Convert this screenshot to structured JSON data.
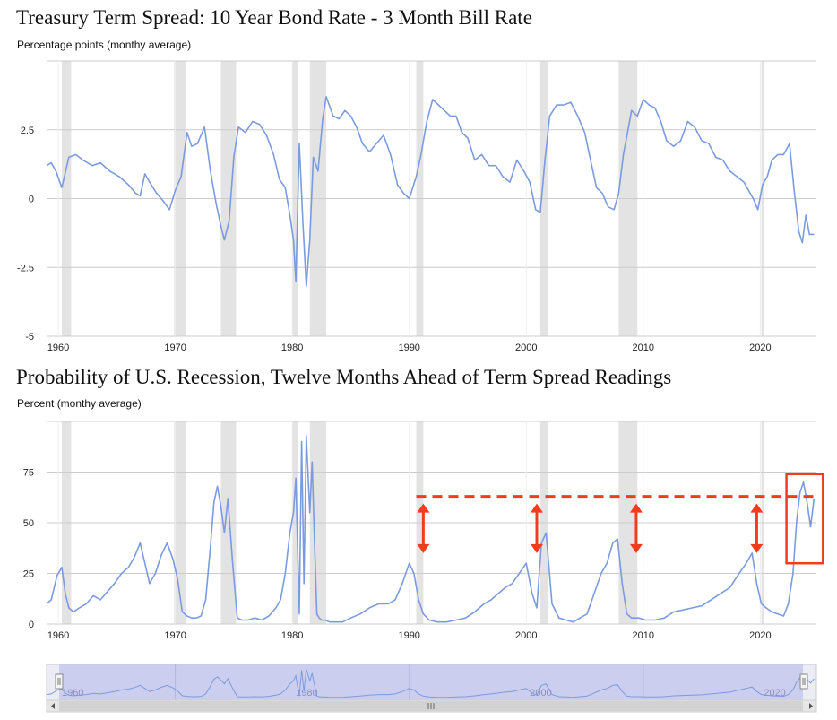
{
  "colors": {
    "line": "#7b9be0",
    "recession_band": "#e3e3e3",
    "grid": "#cccccc",
    "annotation": "#f23c1c",
    "navigator_fill": "#c6c9ec",
    "navigator_bg": "#ececf4"
  },
  "charts": {
    "spread": {
      "title": "Treasury Term Spread: 10 Year Bond Rate - 3 Month Bill Rate",
      "subtitle": "Percentage points (monthy average)"
    },
    "probability": {
      "title": "Probability of U.S. Recession, Twelve Months Ahead of Term Spread Readings",
      "subtitle": "Percent (monthy average)"
    }
  },
  "navigator": {
    "labels": [
      "1960",
      "1980",
      "2000",
      "2020"
    ],
    "left_handle_icon": "handle-grip-icon",
    "right_handle_icon": "handle-grip-icon",
    "scroll_left_icon": "arrow-left-icon",
    "scroll_right_icon": "arrow-right-icon",
    "scroll_thumb_icon": "scroll-grip-icon"
  },
  "chart_data": [
    {
      "type": "line",
      "x_ticks": [
        "1960",
        "1970",
        "1980",
        "1990",
        "2000",
        "2010",
        "2020"
      ],
      "y_ticks": [
        "2.5",
        "0",
        "-2.5",
        "-5"
      ],
      "xlim": [
        1959.0,
        2024.8
      ],
      "ylim": [
        -5,
        5
      ],
      "recessions": [
        [
          1960.3,
          1961.1
        ],
        [
          1969.9,
          1970.9
        ],
        [
          1973.9,
          1975.2
        ],
        [
          1980.0,
          1980.5
        ],
        [
          1981.5,
          1982.9
        ],
        [
          1990.6,
          1991.2
        ],
        [
          2001.2,
          2001.9
        ],
        [
          2007.9,
          2009.5
        ],
        [
          2020.1,
          2020.3
        ]
      ],
      "series": [
        {
          "x": [
            1959.0,
            1959.4,
            1959.8,
            1960.3,
            1960.9,
            1961.5,
            1962.1,
            1962.9,
            1963.6,
            1964.4,
            1965.2,
            1966.0,
            1966.6,
            1967.0,
            1967.4,
            1967.8,
            1968.4,
            1969.0,
            1969.5,
            1970.0,
            1970.5,
            1971.0,
            1971.4,
            1971.9,
            1972.5,
            1973.0,
            1973.5,
            1973.9,
            1974.2,
            1974.6,
            1975.0,
            1975.4,
            1976.0,
            1976.6,
            1977.2,
            1977.8,
            1978.4,
            1978.9,
            1979.4,
            1979.8,
            1980.1,
            1980.3,
            1980.6,
            1980.9,
            1981.2,
            1981.5,
            1981.8,
            1982.2,
            1982.6,
            1982.9,
            1983.5,
            1984.0,
            1984.5,
            1985.0,
            1985.5,
            1986.0,
            1986.6,
            1987.2,
            1987.8,
            1988.4,
            1989.0,
            1989.5,
            1990.0,
            1990.6,
            1991.0,
            1991.5,
            1992.0,
            1992.5,
            1993.0,
            1993.5,
            1994.0,
            1994.5,
            1995.0,
            1995.6,
            1996.2,
            1996.8,
            1997.4,
            1998.0,
            1998.6,
            1999.2,
            1999.8,
            2000.3,
            2000.8,
            2001.2,
            2001.6,
            2002.0,
            2002.6,
            2003.2,
            2003.8,
            2004.4,
            2005.0,
            2005.6,
            2006.0,
            2006.5,
            2007.0,
            2007.5,
            2007.9,
            2008.3,
            2008.7,
            2009.0,
            2009.5,
            2010.0,
            2010.5,
            2011.0,
            2011.5,
            2012.0,
            2012.6,
            2013.2,
            2013.8,
            2014.4,
            2015.0,
            2015.6,
            2016.2,
            2016.8,
            2017.4,
            2018.0,
            2018.6,
            2019.0,
            2019.4,
            2019.8,
            2020.2,
            2020.6,
            2021.0,
            2021.5,
            2022.0,
            2022.5,
            2022.9,
            2023.3,
            2023.6,
            2023.9,
            2024.2,
            2024.6
          ],
          "y": [
            1.2,
            1.3,
            1.0,
            0.4,
            1.5,
            1.6,
            1.4,
            1.2,
            1.3,
            1.0,
            0.8,
            0.5,
            0.2,
            0.1,
            0.9,
            0.6,
            0.2,
            -0.1,
            -0.4,
            0.3,
            0.8,
            2.4,
            1.9,
            2.0,
            2.6,
            1.0,
            -0.2,
            -1.0,
            -1.5,
            -0.8,
            1.5,
            2.6,
            2.4,
            2.8,
            2.7,
            2.3,
            1.6,
            0.7,
            0.4,
            -0.6,
            -1.5,
            -3.0,
            2.0,
            -0.8,
            -3.2,
            -1.5,
            1.5,
            1.0,
            2.9,
            3.7,
            3.0,
            2.9,
            3.2,
            3.0,
            2.6,
            2.0,
            1.7,
            2.0,
            2.3,
            1.6,
            0.5,
            0.2,
            0.0,
            0.8,
            1.6,
            2.8,
            3.6,
            3.4,
            3.2,
            3.0,
            3.0,
            2.4,
            2.2,
            1.4,
            1.6,
            1.2,
            1.2,
            0.8,
            0.6,
            1.4,
            1.0,
            0.6,
            -0.4,
            -0.5,
            1.4,
            3.0,
            3.4,
            3.4,
            3.5,
            3.0,
            2.4,
            1.2,
            0.4,
            0.2,
            -0.3,
            -0.4,
            0.2,
            1.6,
            2.5,
            3.2,
            3.0,
            3.6,
            3.4,
            3.3,
            2.8,
            2.1,
            1.9,
            2.1,
            2.8,
            2.6,
            2.1,
            2.0,
            1.5,
            1.4,
            1.0,
            0.8,
            0.6,
            0.3,
            0.0,
            -0.4,
            0.5,
            0.8,
            1.4,
            1.6,
            1.6,
            2.0,
            0.3,
            -1.2,
            -1.6,
            -0.6,
            -1.3,
            -1.3
          ]
        }
      ]
    },
    {
      "type": "line",
      "x_ticks": [
        "1960",
        "1970",
        "1980",
        "1990",
        "2000",
        "2010",
        "2020"
      ],
      "y_ticks": [
        "75",
        "50",
        "25",
        "0"
      ],
      "xlim": [
        1959.0,
        2024.8
      ],
      "ylim": [
        0,
        100
      ],
      "recessions": [
        [
          1960.3,
          1961.1
        ],
        [
          1969.9,
          1970.9
        ],
        [
          1973.9,
          1975.2
        ],
        [
          1980.0,
          1980.5
        ],
        [
          1981.5,
          1982.9
        ],
        [
          1990.6,
          1991.2
        ],
        [
          2001.2,
          2001.9
        ],
        [
          2007.9,
          2009.5
        ],
        [
          2020.1,
          2020.3
        ]
      ],
      "series": [
        {
          "x": [
            1959.0,
            1959.4,
            1959.9,
            1960.3,
            1960.6,
            1960.9,
            1961.3,
            1961.8,
            1962.4,
            1963.0,
            1963.6,
            1964.2,
            1964.8,
            1965.4,
            1966.0,
            1966.5,
            1967.0,
            1967.4,
            1967.8,
            1968.3,
            1968.8,
            1969.3,
            1969.8,
            1970.2,
            1970.6,
            1971.0,
            1971.4,
            1971.8,
            1972.2,
            1972.6,
            1973.0,
            1973.3,
            1973.6,
            1973.9,
            1974.2,
            1974.5,
            1974.9,
            1975.3,
            1975.7,
            1976.2,
            1976.8,
            1977.4,
            1978.0,
            1978.6,
            1979.0,
            1979.4,
            1979.8,
            1980.1,
            1980.3,
            1980.6,
            1980.8,
            1981.0,
            1981.2,
            1981.5,
            1981.7,
            1981.9,
            1982.1,
            1982.3,
            1982.5,
            1982.8,
            1983.2,
            1983.7,
            1984.3,
            1985.0,
            1985.8,
            1986.6,
            1987.4,
            1988.2,
            1988.8,
            1989.4,
            1990.0,
            1990.4,
            1990.8,
            1991.2,
            1991.7,
            1992.4,
            1993.2,
            1994.0,
            1994.8,
            1995.6,
            1996.4,
            1997.0,
            1997.6,
            1998.2,
            1998.8,
            1999.4,
            2000.0,
            2000.5,
            2000.9,
            2001.3,
            2001.7,
            2002.2,
            2002.8,
            2003.4,
            2004.0,
            2004.6,
            2005.2,
            2005.8,
            2006.4,
            2006.9,
            2007.4,
            2007.8,
            2008.2,
            2008.6,
            2009.0,
            2009.6,
            2010.2,
            2011.0,
            2011.8,
            2012.6,
            2013.4,
            2014.2,
            2015.0,
            2015.8,
            2016.6,
            2017.4,
            2018.2,
            2018.8,
            2019.3,
            2019.7,
            2020.1,
            2020.5,
            2021.0,
            2021.5,
            2022.0,
            2022.4,
            2022.8,
            2023.1,
            2023.4,
            2023.7,
            2024.0,
            2024.3,
            2024.6
          ],
          "y": [
            10,
            12,
            24,
            28,
            15,
            8,
            6,
            8,
            10,
            14,
            12,
            16,
            20,
            25,
            28,
            33,
            40,
            30,
            20,
            25,
            34,
            40,
            32,
            22,
            6,
            4,
            3,
            3,
            4,
            12,
            38,
            60,
            68,
            58,
            45,
            62,
            30,
            3,
            2,
            2,
            3,
            2,
            4,
            8,
            12,
            25,
            45,
            55,
            72,
            5,
            90,
            20,
            93,
            55,
            80,
            40,
            5,
            3,
            2,
            2,
            1,
            1,
            1,
            3,
            5,
            8,
            10,
            10,
            12,
            20,
            30,
            25,
            12,
            5,
            2,
            1,
            1,
            2,
            3,
            6,
            10,
            12,
            15,
            18,
            20,
            25,
            30,
            15,
            8,
            40,
            45,
            10,
            3,
            2,
            1,
            3,
            5,
            15,
            25,
            30,
            40,
            42,
            20,
            5,
            3,
            3,
            2,
            2,
            3,
            6,
            7,
            8,
            9,
            12,
            15,
            18,
            25,
            30,
            35,
            20,
            10,
            8,
            6,
            5,
            4,
            10,
            25,
            50,
            65,
            70,
            60,
            48,
            62
          ]
        }
      ],
      "annotations": {
        "dashed_line_level": 63,
        "arrows_at_years": [
          1991.2,
          2000.9,
          2009.4,
          2019.7
        ],
        "highlight_box_year_range": [
          2022.7,
          2024.9
        ]
      }
    }
  ]
}
